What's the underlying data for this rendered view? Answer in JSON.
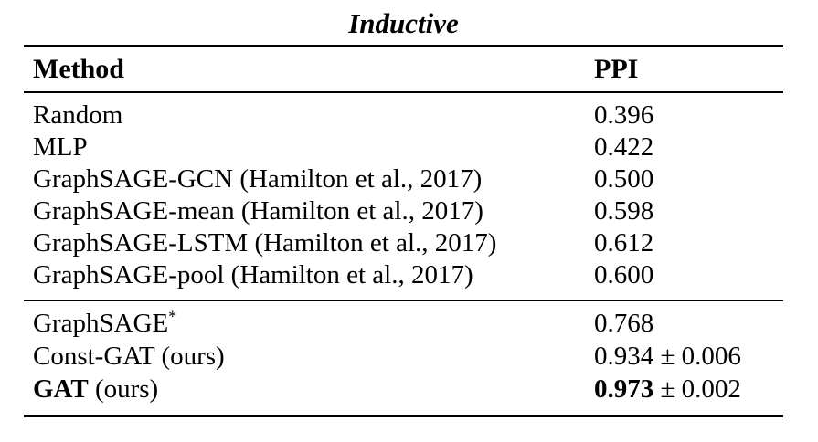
{
  "page": {
    "background_color": "#ffffff",
    "text_color": "#000000",
    "rule_color": "#000000"
  },
  "table": {
    "title": "Inductive",
    "header": {
      "method": "Method",
      "ppi": "PPI"
    },
    "groups": [
      {
        "rows": [
          {
            "method": "Random",
            "ppi": "0.396"
          },
          {
            "method": "MLP",
            "ppi": "0.422"
          },
          {
            "method": "GraphSAGE-GCN (Hamilton et al., 2017)",
            "ppi": "0.500"
          },
          {
            "method": "GraphSAGE-mean (Hamilton et al., 2017)",
            "ppi": "0.598"
          },
          {
            "method": "GraphSAGE-LSTM (Hamilton et al., 2017)",
            "ppi": "0.612"
          },
          {
            "method": "GraphSAGE-pool (Hamilton et al., 2017)",
            "ppi": "0.600"
          }
        ]
      },
      {
        "rows": [
          {
            "method": "GraphSAGE",
            "method_sup": "*",
            "ppi": "0.768"
          },
          {
            "method": "Const-GAT (ours)",
            "ppi": "0.934 ± 0.006"
          },
          {
            "method_bold": "GAT",
            "method_rest": " (ours)",
            "ppi_bold": "0.973",
            "ppi_rest": " ± 0.002"
          }
        ]
      }
    ]
  }
}
